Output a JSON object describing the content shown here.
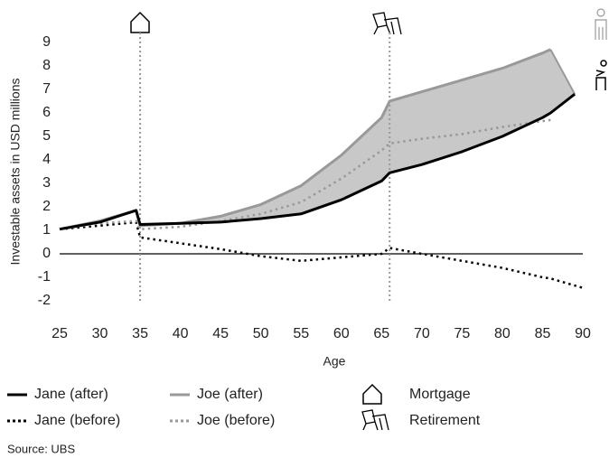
{
  "chart_data": {
    "type": "line",
    "y_label": "Investable assets in USD millions",
    "x_label": "Age",
    "source": "Source: UBS",
    "x": [
      25,
      30,
      34.5,
      35,
      40,
      45,
      50,
      55,
      60,
      65,
      66,
      70,
      75,
      80,
      85,
      86,
      89,
      90
    ],
    "series": [
      {
        "name": "Jane (after)",
        "color": "#000000",
        "dash": false,
        "values": [
          1.05,
          1.35,
          1.85,
          1.25,
          1.3,
          1.35,
          1.5,
          1.7,
          2.3,
          3.1,
          3.45,
          3.8,
          4.35,
          5.0,
          5.8,
          6.0,
          6.8,
          null
        ]
      },
      {
        "name": "Joe (after)",
        "color": "#999999",
        "dash": false,
        "values": [
          1.05,
          1.4,
          1.85,
          1.2,
          1.3,
          1.6,
          2.1,
          2.9,
          4.2,
          5.8,
          6.5,
          6.9,
          7.4,
          7.9,
          8.55,
          8.7,
          null,
          null
        ]
      },
      {
        "name": "Jane (before)",
        "color": "#000000",
        "dash": true,
        "values": [
          1.05,
          1.2,
          1.35,
          0.7,
          0.45,
          0.2,
          -0.1,
          -0.3,
          -0.15,
          0.0,
          0.25,
          0.0,
          -0.3,
          -0.6,
          -1.0,
          -1.05,
          -1.35,
          -1.45
        ]
      },
      {
        "name": "Joe (before)",
        "color": "#999999",
        "dash": true,
        "values": [
          1.05,
          1.3,
          1.4,
          1.05,
          1.15,
          1.4,
          1.7,
          2.2,
          3.2,
          4.4,
          4.7,
          4.9,
          5.1,
          5.4,
          5.65,
          5.7,
          null,
          null
        ]
      }
    ],
    "shade_color": "#c8c8c8",
    "markers": [
      {
        "x": 35,
        "label": "Mortgage"
      },
      {
        "x": 66,
        "label": "Retirement"
      }
    ],
    "xlim": [
      25,
      90
    ],
    "xticks": [
      25,
      30,
      35,
      40,
      45,
      50,
      55,
      60,
      65,
      70,
      75,
      80,
      85,
      90
    ],
    "ylim": [
      -2,
      9
    ],
    "yticks": [
      -2,
      -1,
      0,
      1,
      2,
      3,
      4,
      5,
      6,
      7,
      8,
      9
    ]
  }
}
